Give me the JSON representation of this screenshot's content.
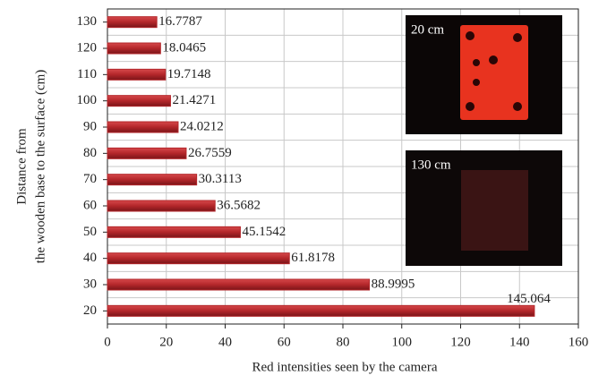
{
  "chart_data": {
    "type": "barh",
    "xlabel": "Red intensities seen by the camera",
    "ylabel": [
      "Distance from",
      "the wooden base to the surface (cm)"
    ],
    "categories": [
      "20",
      "30",
      "40",
      "50",
      "60",
      "70",
      "80",
      "90",
      "100",
      "110",
      "120",
      "130"
    ],
    "values": [
      145.064,
      88.9995,
      61.8178,
      45.1542,
      36.5682,
      30.3113,
      26.7559,
      24.0212,
      21.4271,
      19.7148,
      18.0465,
      16.7787
    ],
    "color": "#b3262a",
    "xlim": [
      0,
      160
    ],
    "xticks": [
      0,
      20,
      40,
      60,
      80,
      100,
      120,
      140,
      160
    ],
    "grid": true,
    "annotations": [
      "20 cm",
      "130 cm"
    ]
  }
}
